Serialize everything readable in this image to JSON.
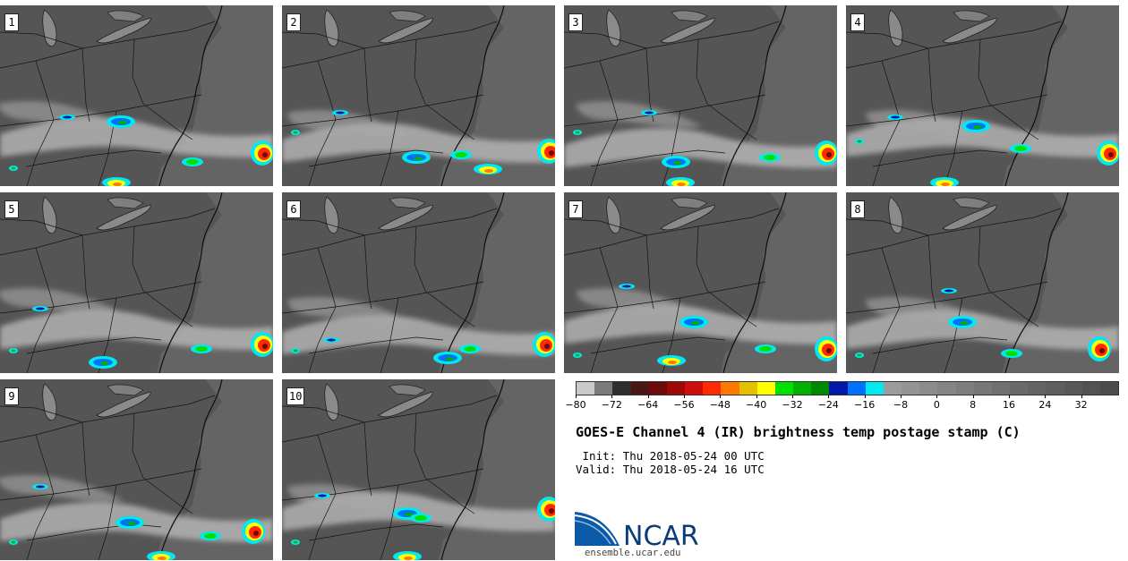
{
  "panels": [
    {
      "label": "1"
    },
    {
      "label": "2"
    },
    {
      "label": "3"
    },
    {
      "label": "4"
    },
    {
      "label": "5"
    },
    {
      "label": "6"
    },
    {
      "label": "7"
    },
    {
      "label": "8"
    },
    {
      "label": "9"
    },
    {
      "label": "10"
    }
  ],
  "colorbar": {
    "min": -80,
    "max": 40,
    "colors": [
      "#c9c9c9",
      "#7a7a7a",
      "#2e2e2e",
      "#4a1616",
      "#6e0a0a",
      "#a00808",
      "#d00c0c",
      "#ff2a00",
      "#ff7800",
      "#e6c000",
      "#ffff00",
      "#00e000",
      "#00b000",
      "#008800",
      "#0018a8",
      "#0070ff",
      "#00e8f0",
      "#9c9c9c",
      "#949494",
      "#8c8c8c",
      "#858585",
      "#7e7e7e",
      "#777777",
      "#707070",
      "#6a6a6a",
      "#646464",
      "#5e5e5e",
      "#585858",
      "#525252",
      "#4c4c4c"
    ],
    "ticks": [
      "−80",
      "−72",
      "−64",
      "−56",
      "−48",
      "−40",
      "−32",
      "−24",
      "−16",
      "−8",
      "0",
      "8",
      "16",
      "24",
      "32"
    ]
  },
  "title": "GOES-E Channel 4 (IR) brightness temp postage stamp (C)",
  "init_text": " Init: Thu 2018-05-24 00 UTC",
  "valid_text": "Valid: Thu 2018-05-24 16 UTC",
  "logo": {
    "wordmark": "NCAR",
    "url": "ensemble.ucar.edu",
    "brand_color": "#0a5aa8"
  }
}
